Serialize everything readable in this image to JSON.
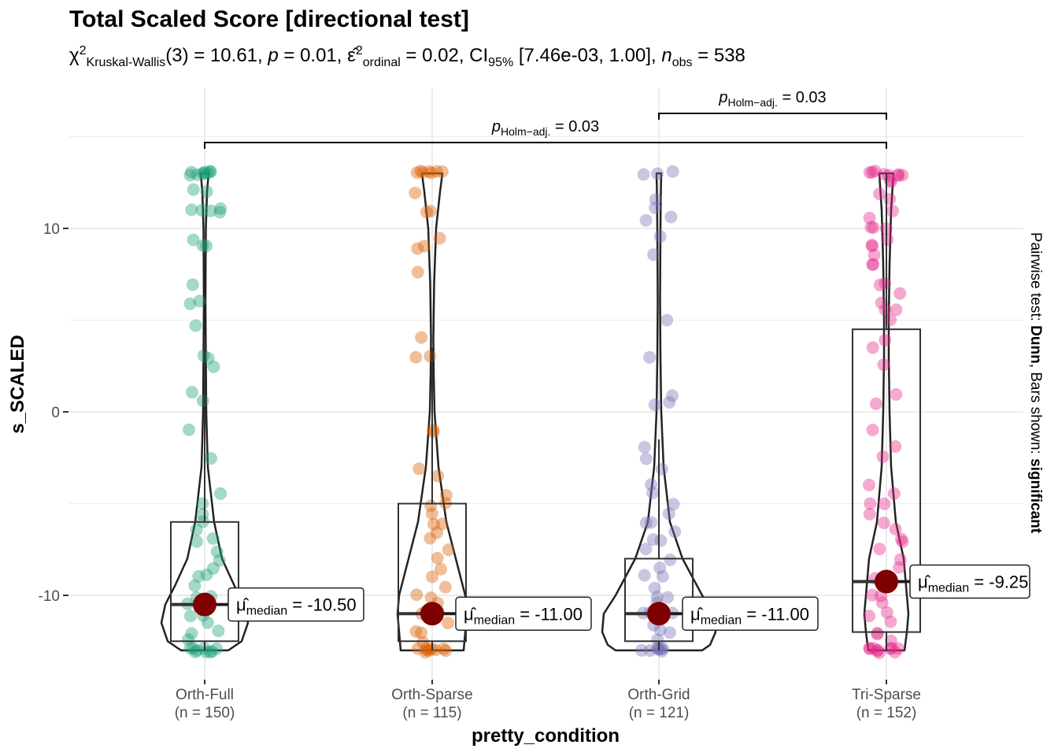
{
  "title": "Total Scaled Score [directional test]",
  "subtitle": {
    "stat_symbol": "χ",
    "stat_sub": "Kruskal-Wallis",
    "df": "(3)",
    "stat_value": " = 10.61, ",
    "p_label": "p",
    "p_value": " = 0.01, ",
    "effect_symbol": "ε̂",
    "effect_sub": "ordinal",
    "effect_value": " = 0.02, CI",
    "ci_sub": "95%",
    "ci_value": " [7.46e-03, 1.00], ",
    "n_label": "n",
    "n_sub": "obs",
    "n_value": " = 538"
  },
  "colors": {
    "Orth-Full": "#1b9e77",
    "Orth-Sparse": "#d95f02",
    "Orth-Grid": "#7570b3",
    "Tri-Sparse": "#e7298a",
    "median_point": "#7f0000",
    "grid": "#ebebeb"
  },
  "chart_data": {
    "type": "violin-box-jitter",
    "xlabel": "pretty_condition",
    "ylabel": "s_SCALED",
    "ylim": [
      -13.7,
      15.5
    ],
    "yticks": [
      -10,
      0,
      10
    ],
    "ytick_labels": [
      "-10",
      "0",
      "10"
    ],
    "right_caption_plain_1": "Pairwise test: ",
    "right_caption_bold_1": "Dunn",
    "right_caption_plain_2": ", Bars shown: ",
    "right_caption_bold_2": "significant",
    "groups": [
      {
        "name": "Orth-Full",
        "n_label": "(n = 150)",
        "n": 150,
        "median": -10.5,
        "median_label": "= -10.50",
        "q1": -12.5,
        "q3": -6.0,
        "whisker_low": -13,
        "whisker_high": 3.5,
        "points": [
          13,
          13,
          13,
          13,
          13,
          13,
          13,
          13,
          13,
          12,
          12,
          11,
          11,
          11,
          11,
          10.9,
          9.5,
          9,
          9,
          7,
          6,
          6,
          4.8,
          3,
          2.9,
          2.5,
          1,
          0.5,
          -1,
          -2.5,
          -4.5,
          -5,
          -5.5,
          -6,
          -6.5,
          -7,
          -7,
          -7.5,
          -8,
          -8.5,
          -9,
          -9,
          -9.5,
          -10,
          -10,
          -10.5,
          -10.5,
          -11,
          -11,
          -11.5,
          -12,
          -12,
          -12.5,
          -13,
          -13,
          -13,
          -13,
          -13,
          -13,
          -13,
          -13,
          -13
        ]
      },
      {
        "name": "Orth-Sparse",
        "n_label": "(n = 115)",
        "n": 115,
        "median": -11.0,
        "median_label": "= -11.00",
        "q1": -12.5,
        "q3": -5.0,
        "whisker_low": -13,
        "whisker_high": 3.5,
        "points": [
          13,
          13,
          13,
          13,
          13,
          13,
          13,
          12,
          11,
          11,
          9.5,
          9,
          9,
          7.5,
          4,
          3,
          3,
          -1,
          -1,
          -3,
          -3.5,
          -4.5,
          -5,
          -5,
          -5.5,
          -6,
          -6,
          -6.5,
          -7,
          -7.5,
          -8,
          -8.5,
          -9,
          -9.5,
          -10,
          -10,
          -10.5,
          -11,
          -11,
          -11,
          -11.5,
          -12,
          -12,
          -12.5,
          -13,
          -13,
          -13,
          -13,
          -13,
          -13,
          -13,
          -13,
          -13
        ]
      },
      {
        "name": "Orth-Grid",
        "n_label": "(n = 121)",
        "n": 121,
        "median": -11.0,
        "median_label": "= -11.00",
        "q1": -12.5,
        "q3": -8.0,
        "whisker_low": -13,
        "whisker_high": -1.5,
        "points": [
          13,
          13,
          13,
          11.5,
          11,
          10.5,
          10.5,
          9.5,
          8.5,
          5,
          3,
          1,
          0.5,
          0.5,
          -2,
          -2.5,
          -3,
          -4,
          -4.5,
          -5,
          -5.5,
          -6,
          -6,
          -6.5,
          -7,
          -7,
          -7.5,
          -8,
          -8.5,
          -9,
          -9,
          -9.5,
          -10,
          -10,
          -10.5,
          -11,
          -11,
          -11,
          -11.5,
          -12,
          -12,
          -12.5,
          -13,
          -13,
          -13,
          -13,
          -13,
          -13,
          -13,
          -13
        ]
      },
      {
        "name": "Tri-Sparse",
        "n_label": "(n = 152)",
        "n": 152,
        "median": -9.25,
        "median_label": "= -9.25",
        "q1": -12.0,
        "q3": 4.5,
        "whisker_low": -13,
        "whisker_high": 13,
        "points": [
          13,
          13,
          13,
          13,
          13,
          13,
          13,
          13,
          12.5,
          12.5,
          12,
          11.5,
          11,
          10.5,
          10,
          10,
          10,
          9.5,
          9,
          9,
          8.5,
          8,
          8,
          7,
          7,
          6.5,
          6,
          5.5,
          5.5,
          5,
          4,
          3.5,
          2.5,
          1,
          0.5,
          -1,
          -2,
          -2.5,
          -4,
          -4.5,
          -5,
          -5,
          -5.5,
          -6,
          -6.5,
          -7,
          -7,
          -7.5,
          -8,
          -8.5,
          -9,
          -9,
          -9.5,
          -10,
          -10,
          -10.5,
          -11,
          -11,
          -11.5,
          -12,
          -12,
          -12.5,
          -13,
          -13,
          -13,
          -13,
          -13,
          -13,
          -13,
          -13,
          -13,
          -13
        ]
      }
    ],
    "brackets": [
      {
        "from": "Orth-Full",
        "to": "Tri-Sparse",
        "label_p": "p",
        "label_sub": "Holm−adj.",
        "label_value": " = 0.03"
      },
      {
        "from": "Orth-Grid",
        "to": "Tri-Sparse",
        "label_p": "p",
        "label_sub": "Holm−adj.",
        "label_value": " = 0.03"
      }
    ]
  }
}
